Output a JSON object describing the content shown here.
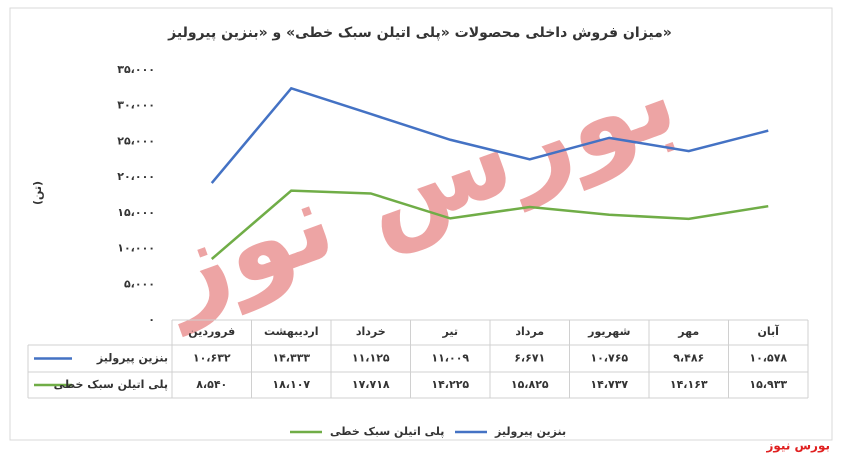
{
  "chart_data": {
    "type": "line",
    "stacked": true,
    "title": "میزان فروش داخلی محصولات «پلی اتیلن سبک خطی» و «بنزین پیرولیز»",
    "y_label": "(تن)",
    "categories": [
      "فروردین",
      "اردیبهشت",
      "خرداد",
      "تیر",
      "مرداد",
      "شهریور",
      "مهر",
      "آبان"
    ],
    "series": [
      {
        "name": "پلی اتیلن سبک خطی",
        "color": "#70ad47",
        "values": [
          8540,
          18107,
          17718,
          14225,
          15825,
          14737,
          14163,
          15933
        ],
        "value_labels": [
          "۸،۵۴۰",
          "۱۸،۱۰۷",
          "۱۷،۷۱۸",
          "۱۴،۲۲۵",
          "۱۵،۸۲۵",
          "۱۴،۷۳۷",
          "۱۴،۱۶۳",
          "۱۵،۹۳۳"
        ]
      },
      {
        "name": "بنزین پیرولیز",
        "color": "#4472c4",
        "values": [
          10632,
          14333,
          11125,
          11009,
          6671,
          10765,
          9486,
          10578
        ],
        "value_labels": [
          "۱۰،۶۳۲",
          "۱۴،۳۳۳",
          "۱۱،۱۲۵",
          "۱۱،۰۰۹",
          "۶،۶۷۱",
          "۱۰،۷۶۵",
          "۹،۴۸۶",
          "۱۰،۵۷۸"
        ]
      }
    ],
    "ylim": [
      0,
      35000
    ],
    "yticks": [
      {
        "value": 0,
        "label": "۰"
      },
      {
        "value": 5000,
        "label": "۵،۰۰۰"
      },
      {
        "value": 10000,
        "label": "۱۰،۰۰۰"
      },
      {
        "value": 15000,
        "label": "۱۵،۰۰۰"
      },
      {
        "value": 20000,
        "label": "۲۰،۰۰۰"
      },
      {
        "value": 25000,
        "label": "۲۵،۰۰۰"
      },
      {
        "value": 30000,
        "label": "۳۰،۰۰۰"
      },
      {
        "value": 35000,
        "label": "۳۵،۰۰۰"
      }
    ],
    "grid": false,
    "legend": "bottom",
    "watermark": "بورس نوز",
    "source": "بورس نیوز"
  }
}
